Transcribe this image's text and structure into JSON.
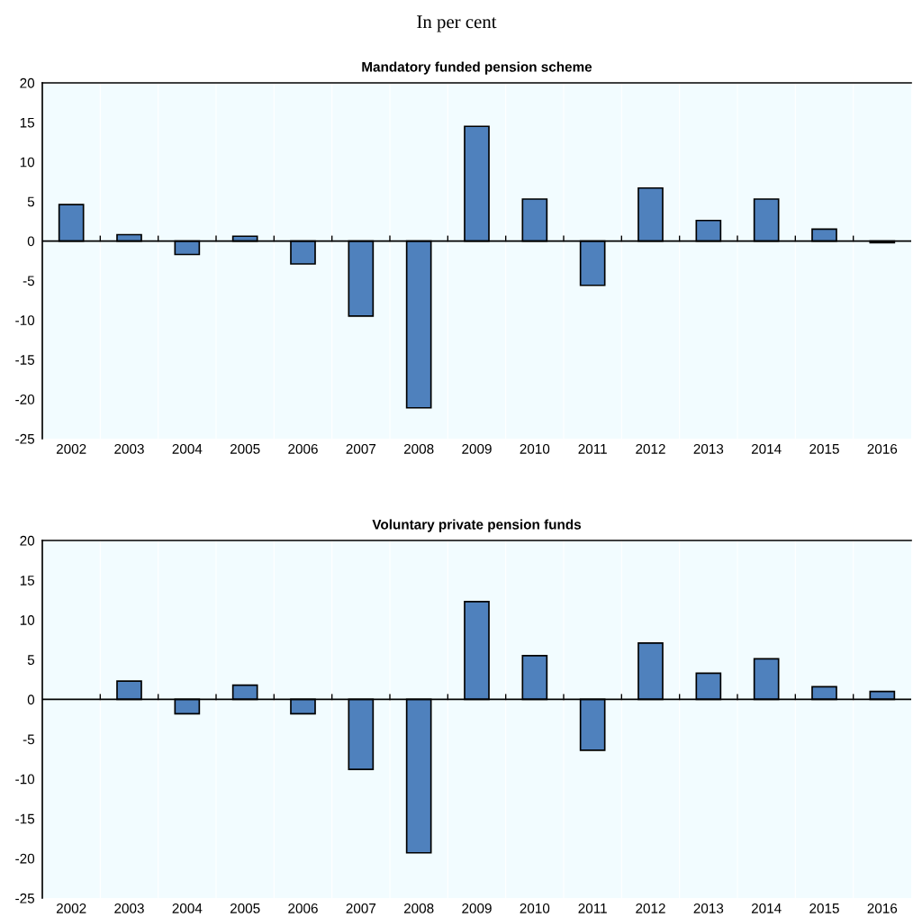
{
  "chart_data": [
    {
      "type": "bar",
      "title": "Mandatory funded pension scheme",
      "subtitle": "In per cent",
      "categories": [
        "2002",
        "2003",
        "2004",
        "2005",
        "2006",
        "2007",
        "2008",
        "2009",
        "2010",
        "2011",
        "2012",
        "2013",
        "2014",
        "2015",
        "2016"
      ],
      "values": [
        4.6,
        0.8,
        -1.7,
        0.6,
        -2.9,
        -9.5,
        -21.1,
        14.5,
        5.3,
        -5.6,
        6.7,
        2.6,
        5.3,
        1.5,
        -0.2
      ],
      "color": "#4f81bd",
      "ylim": [
        -25,
        20
      ],
      "yticks": [
        -25,
        -20,
        -15,
        -10,
        -5,
        0,
        5,
        10,
        15,
        20
      ],
      "grid": false,
      "legend": false
    },
    {
      "type": "bar",
      "title": "Voluntary private pension funds",
      "categories": [
        "2002",
        "2003",
        "2004",
        "2005",
        "2006",
        "2007",
        "2008",
        "2009",
        "2010",
        "2011",
        "2012",
        "2013",
        "2014",
        "2015",
        "2016"
      ],
      "values": [
        null,
        2.3,
        -1.8,
        1.8,
        -1.8,
        -8.8,
        -19.3,
        12.3,
        5.5,
        -6.4,
        7.1,
        3.3,
        5.1,
        1.6,
        1.0
      ],
      "color": "#4f81bd",
      "ylim": [
        -25,
        20
      ],
      "yticks": [
        -25,
        -20,
        -15,
        -10,
        -5,
        0,
        5,
        10,
        15,
        20
      ],
      "grid": false,
      "legend": false
    }
  ]
}
